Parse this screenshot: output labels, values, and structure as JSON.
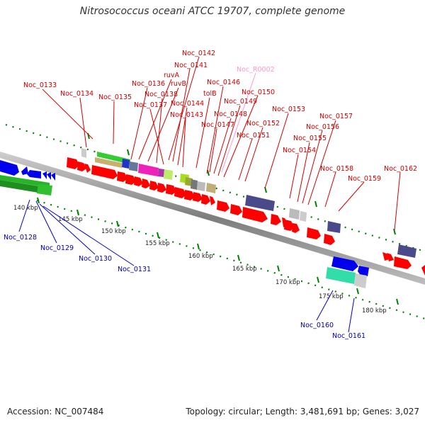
{
  "title": "Nitrosococcus oceani ATCC 19707, complete genome",
  "footer": {
    "accession": "Accession: NC_007484",
    "topology": "Topology: circular; Length: 3,481,691 bp; Genes: 3,027"
  },
  "scale_labels": [
    "140 kbp",
    "145 kbp",
    "150 kbp",
    "155 kbp",
    "160 kbp",
    "165 kbp",
    "170 kbp",
    "175 kbp",
    "180 kbp"
  ],
  "gene_labels_top": [
    "Noc_0133",
    "Noc_0134",
    "Noc_0135",
    "Noc_0136",
    "ruvA",
    "ruvB",
    "Noc_0138",
    "Noc_0137",
    "Noc_0142",
    "Noc_0141",
    "Noc_0144",
    "Noc_0143",
    "tolB",
    "Noc_0146",
    "Noc_0147",
    "Noc_0148",
    "Noc_0149",
    "Noc_0150",
    "Noc_R0002",
    "Noc_0151",
    "Noc_0152",
    "Noc_0153",
    "Noc_0154",
    "Noc_0155",
    "Noc_0156",
    "Noc_0157",
    "Noc_0158",
    "Noc_0159",
    "Noc_0162"
  ],
  "gene_labels_bottom": [
    "Noc_0128",
    "Noc_0129",
    "Noc_0130",
    "Noc_0131",
    "Noc_0160",
    "Noc_0161"
  ],
  "colors": {
    "forward_gene": "#ff0000",
    "reverse_gene": "#0000ee",
    "rna_label": "#ff99cc",
    "backbone": "#999999",
    "tick": "#008000"
  }
}
